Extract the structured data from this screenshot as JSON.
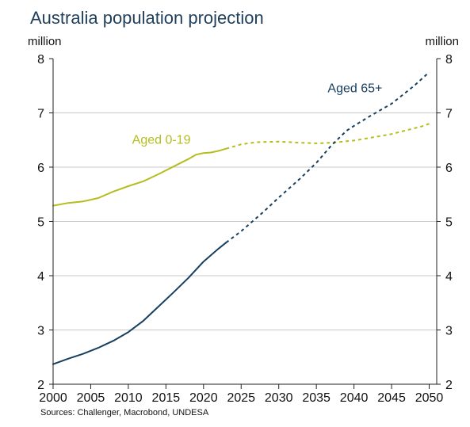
{
  "chart_data": {
    "type": "line",
    "title": "Australia population projection",
    "unit_left": "million",
    "unit_right": "million",
    "source": "Sources: Challenger, Macrobond, UNDESA",
    "xlim": [
      2000,
      2051
    ],
    "ylim": [
      2,
      8
    ],
    "x_ticks": [
      2000,
      2005,
      2010,
      2015,
      2020,
      2025,
      2030,
      2035,
      2040,
      2045,
      2050
    ],
    "y_ticks": [
      2,
      3,
      4,
      5,
      6,
      7,
      8
    ],
    "grid": true,
    "series": [
      {
        "name": "Aged 0-19",
        "color": "#b5bd1f",
        "label_pos": [
          2010.5,
          6.43
        ],
        "actual": {
          "x": [
            2000,
            2002,
            2004,
            2006,
            2008,
            2010,
            2012,
            2014,
            2016,
            2018,
            2019,
            2020,
            2021,
            2022,
            2023
          ],
          "y": [
            5.29,
            5.34,
            5.37,
            5.43,
            5.55,
            5.65,
            5.74,
            5.87,
            6.01,
            6.15,
            6.23,
            6.26,
            6.27,
            6.3,
            6.34
          ]
        },
        "projection": {
          "x": [
            2023,
            2025,
            2027,
            2030,
            2033,
            2035,
            2037,
            2040,
            2043,
            2045,
            2047,
            2049,
            2050
          ],
          "y": [
            6.34,
            6.42,
            6.46,
            6.47,
            6.45,
            6.44,
            6.45,
            6.49,
            6.56,
            6.61,
            6.68,
            6.75,
            6.8
          ]
        }
      },
      {
        "name": "Aged 65+",
        "color": "#173f5f",
        "label_pos": [
          2036.5,
          7.38
        ],
        "actual": {
          "x": [
            2000,
            2002,
            2004,
            2006,
            2008,
            2010,
            2012,
            2014,
            2016,
            2018,
            2020,
            2022,
            2023
          ],
          "y": [
            2.37,
            2.47,
            2.56,
            2.67,
            2.8,
            2.96,
            3.17,
            3.43,
            3.69,
            3.96,
            4.26,
            4.5,
            4.61
          ]
        },
        "projection": {
          "x": [
            2023,
            2025,
            2028,
            2030,
            2033,
            2035,
            2037,
            2039,
            2040,
            2042,
            2045,
            2048,
            2050
          ],
          "y": [
            4.61,
            4.82,
            5.18,
            5.44,
            5.81,
            6.08,
            6.4,
            6.67,
            6.76,
            6.93,
            7.17,
            7.5,
            7.75
          ]
        }
      }
    ]
  }
}
